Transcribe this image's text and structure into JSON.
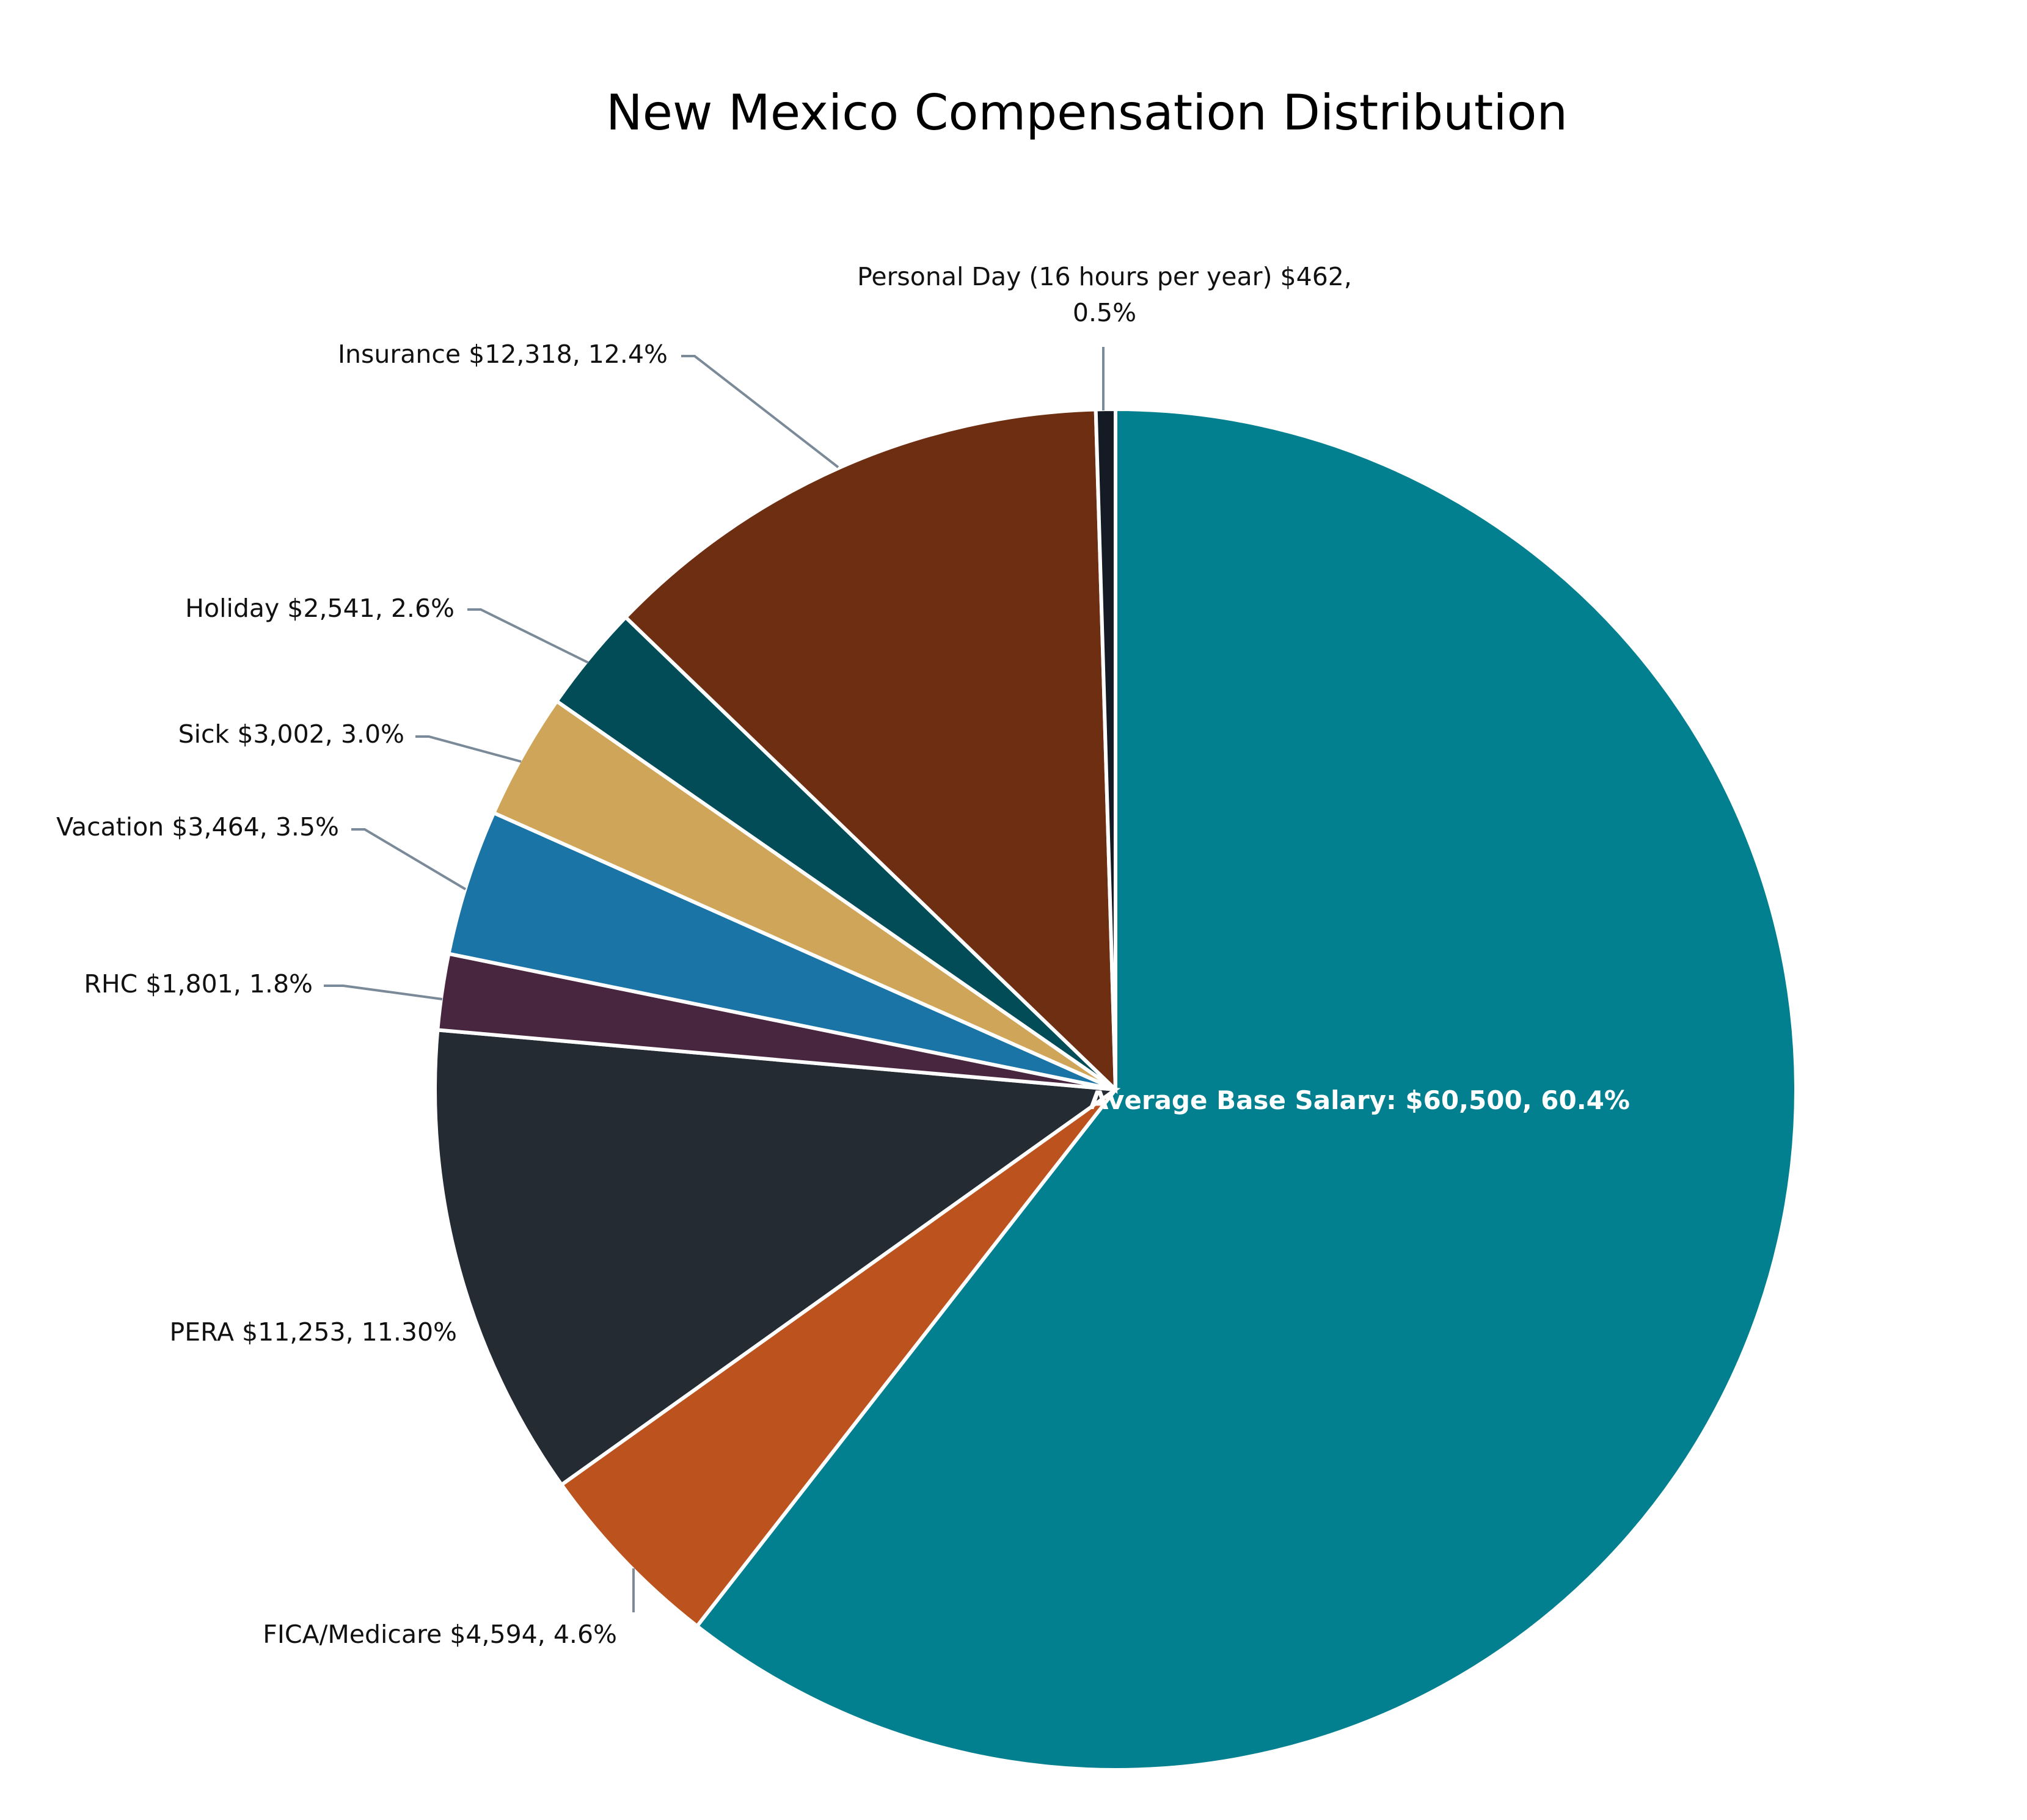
{
  "chart_data": {
    "type": "pie",
    "title": "New Mexico Compensation Distribution",
    "slices": [
      {
        "name": "Average Base Salary",
        "value": 60500,
        "percent": 60.4,
        "label": "Average Base Salary: $60,500, 60.4%",
        "color": "#03808f"
      },
      {
        "name": "FICA/Medicare",
        "value": 4594,
        "percent": 4.6,
        "label": "FICA/Medicare $4,594, 4.6%",
        "color": "#bc521e"
      },
      {
        "name": "PERA",
        "value": 11253,
        "percent": 11.3,
        "label": "PERA  $11,253, 11.30%",
        "color": "#252b33"
      },
      {
        "name": "RHC",
        "value": 1801,
        "percent": 1.8,
        "label": "RHC  $1,801, 1.8%",
        "color": "#49263f"
      },
      {
        "name": "Vacation",
        "value": 3464,
        "percent": 3.5,
        "label": "Vacation  $3,464, 3.5%",
        "color": "#1a74a5"
      },
      {
        "name": "Sick",
        "value": 3002,
        "percent": 3.0,
        "label": "Sick $3,002, 3.0%",
        "color": "#cfa559"
      },
      {
        "name": "Holiday",
        "value": 2541,
        "percent": 2.6,
        "label": "Holiday  $2,541, 2.6%",
        "color": "#014c57"
      },
      {
        "name": "Insurance",
        "value": 12318,
        "percent": 12.4,
        "label": "Insurance  $12,318, 12.4%",
        "color": "#6e2e12"
      },
      {
        "name": "Personal Day (16 hours per year)",
        "value": 462,
        "percent": 0.5,
        "label": "Personal Day (16 hours per year) $462, 0.5%",
        "label_lines": [
          "Personal Day (16 hours per year) $462,",
          "0.5%"
        ],
        "color": "#151b24"
      }
    ]
  }
}
